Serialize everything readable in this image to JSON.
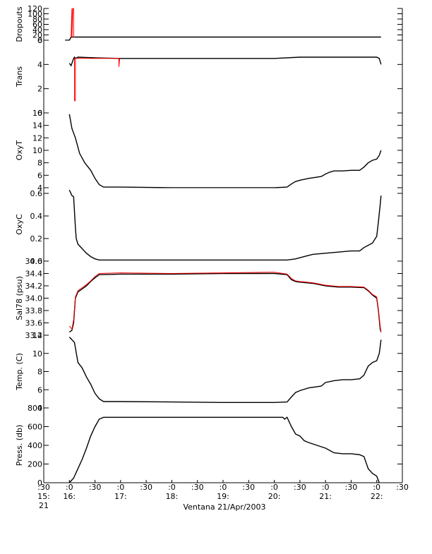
{
  "chart_data": [
    {
      "type": "line",
      "ylabel": "Dropouts",
      "ylim": [
        0,
        120
      ],
      "yticks": [
        0,
        20,
        40,
        60,
        80,
        100,
        120
      ],
      "ytick_labels": [
        "0",
        "20",
        "40",
        "60",
        "80",
        "100",
        "120"
      ],
      "series": [
        {
          "color": "#000000",
          "x": [
            "15:55",
            "16:00",
            "16:02",
            "16:03",
            "22:05"
          ],
          "y": [
            0,
            0,
            12,
            12,
            12
          ]
        },
        {
          "color": "#ff0000",
          "x": [
            "16:02",
            "16:03",
            "16:03",
            "16:04",
            "16:05",
            "16:05",
            "16:06"
          ],
          "y": [
            12,
            120,
            12,
            120,
            120,
            12,
            12
          ]
        }
      ]
    },
    {
      "type": "line",
      "ylabel": "Trans",
      "ylim": [
        0,
        6
      ],
      "yticks": [
        0,
        2,
        4,
        6
      ],
      "ytick_labels": [
        "0",
        "2",
        "4",
        "6"
      ],
      "series": [
        {
          "color": "#000000",
          "x": [
            "16:00",
            "16:02",
            "16:05",
            "16:06",
            "16:07",
            "16:10",
            "16:30",
            "17:00",
            "17:30",
            "18:00",
            "19:00",
            "20:00",
            "20:30",
            "21:00",
            "21:30",
            "22:00",
            "22:03",
            "22:05"
          ],
          "y": [
            4.1,
            3.9,
            4.5,
            4.6,
            4.5,
            4.6,
            4.55,
            4.5,
            4.5,
            4.5,
            4.5,
            4.5,
            4.6,
            4.6,
            4.6,
            4.6,
            4.5,
            4.0
          ]
        },
        {
          "color": "#ff0000",
          "x": [
            "16:06",
            "16:06",
            "16:07",
            "16:07",
            "16:58",
            "16:58",
            "16:59"
          ],
          "y": [
            4.5,
            1.0,
            1.0,
            4.5,
            4.5,
            3.8,
            4.5
          ]
        }
      ]
    },
    {
      "type": "line",
      "ylabel": "OxyT",
      "ylim": [
        4,
        16
      ],
      "yticks": [
        4,
        6,
        8,
        10,
        12,
        14,
        16
      ],
      "ytick_labels": [
        "4",
        "6",
        "8",
        "10",
        "12",
        "14",
        "16"
      ],
      "series": [
        {
          "color": "#000000",
          "x": [
            "16:00",
            "16:03",
            "16:07",
            "16:12",
            "16:18",
            "16:25",
            "16:30",
            "16:35",
            "16:40",
            "17:00",
            "18:00",
            "19:00",
            "19:30",
            "20:00",
            "20:15",
            "20:20",
            "20:25",
            "20:30",
            "20:40",
            "20:55",
            "21:00",
            "21:05",
            "21:10",
            "21:20",
            "21:30",
            "21:40",
            "21:45",
            "21:50",
            "21:55",
            "22:00",
            "22:03",
            "22:05"
          ],
          "y": [
            15.8,
            13.5,
            12.0,
            9.5,
            8.0,
            6.8,
            5.5,
            4.5,
            4.1,
            4.1,
            4.0,
            4.0,
            4.0,
            4.0,
            4.1,
            4.6,
            5.0,
            5.2,
            5.5,
            5.8,
            6.2,
            6.5,
            6.7,
            6.7,
            6.8,
            6.8,
            7.3,
            8.0,
            8.4,
            8.6,
            9.2,
            10.0
          ]
        }
      ]
    },
    {
      "type": "line",
      "ylabel": "OxyC",
      "ylim": [
        0,
        0.65
      ],
      "yticks": [
        0,
        0.2,
        0.4,
        0.6
      ],
      "ytick_labels": [
        "0.0",
        "0.2",
        "0.4",
        "0.6"
      ],
      "series": [
        {
          "color": "#000000",
          "x": [
            "16:00",
            "16:03",
            "16:05",
            "16:07",
            "16:08",
            "16:10",
            "16:15",
            "16:20",
            "16:25",
            "16:30",
            "16:35",
            "17:00",
            "18:00",
            "19:00",
            "20:00",
            "20:15",
            "20:25",
            "20:35",
            "20:45",
            "21:00",
            "21:15",
            "21:30",
            "21:40",
            "21:45",
            "21:50",
            "21:55",
            "22:00",
            "22:02",
            "22:04",
            "22:05"
          ],
          "y": [
            0.63,
            0.58,
            0.57,
            0.3,
            0.2,
            0.15,
            0.11,
            0.07,
            0.04,
            0.02,
            0.01,
            0.01,
            0.01,
            0.01,
            0.01,
            0.01,
            0.02,
            0.04,
            0.06,
            0.07,
            0.08,
            0.09,
            0.09,
            0.12,
            0.14,
            0.16,
            0.22,
            0.35,
            0.5,
            0.58
          ]
        }
      ]
    },
    {
      "type": "line",
      "ylabel": "Sal78 (psu)",
      "ylim": [
        33.4,
        34.6
      ],
      "yticks": [
        33.4,
        33.6,
        33.8,
        34.0,
        34.2,
        34.4,
        34.6
      ],
      "ytick_labels": [
        "33.4",
        "33.6",
        "33.8",
        "34.0",
        "34.2",
        "34.4",
        "34.6"
      ],
      "series": [
        {
          "color": "#000000",
          "x": [
            "16:00",
            "16:03",
            "16:05",
            "16:07",
            "16:10",
            "16:15",
            "16:20",
            "16:25",
            "16:30",
            "16:35",
            "17:00",
            "18:00",
            "19:00",
            "20:00",
            "20:15",
            "20:20",
            "20:25",
            "20:30",
            "20:45",
            "21:00",
            "21:15",
            "21:30",
            "21:45",
            "21:50",
            "21:55",
            "22:00",
            "22:02",
            "22:04",
            "22:05"
          ],
          "y": [
            33.45,
            33.48,
            33.6,
            34.0,
            34.1,
            34.15,
            34.2,
            34.27,
            34.33,
            34.38,
            34.39,
            34.39,
            34.4,
            34.4,
            34.38,
            34.3,
            34.27,
            34.26,
            34.24,
            34.2,
            34.18,
            34.18,
            34.17,
            34.12,
            34.05,
            34.0,
            33.8,
            33.5,
            33.45
          ]
        },
        {
          "color": "#ff0000",
          "x": [
            "16:00",
            "16:03",
            "16:05",
            "16:07",
            "16:10",
            "16:15",
            "16:20",
            "16:25",
            "16:30",
            "16:35",
            "17:00",
            "18:00",
            "19:00",
            "20:00",
            "20:15",
            "20:20",
            "20:25",
            "20:30",
            "20:45",
            "21:00",
            "21:15",
            "21:30",
            "21:45",
            "21:50",
            "21:55",
            "22:00",
            "22:02",
            "22:04",
            "22:05"
          ],
          "y": [
            33.55,
            33.5,
            33.65,
            34.02,
            34.12,
            34.17,
            34.22,
            34.28,
            34.35,
            34.4,
            34.41,
            34.4,
            34.41,
            34.42,
            34.39,
            34.32,
            34.28,
            34.27,
            34.25,
            34.21,
            34.19,
            34.19,
            34.18,
            34.13,
            34.06,
            34.02,
            33.82,
            33.55,
            33.45
          ]
        }
      ]
    },
    {
      "type": "line",
      "ylabel": "Temp. (C)",
      "ylim": [
        4,
        12
      ],
      "yticks": [
        4,
        6,
        8,
        10,
        12
      ],
      "ytick_labels": [
        "4",
        "6",
        "8",
        "10",
        "12"
      ],
      "series": [
        {
          "color": "#000000",
          "x": [
            "16:00",
            "16:03",
            "16:06",
            "16:10",
            "16:15",
            "16:20",
            "16:25",
            "16:30",
            "16:35",
            "16:40",
            "17:00",
            "18:00",
            "19:00",
            "20:00",
            "20:15",
            "20:20",
            "20:25",
            "20:30",
            "20:40",
            "20:55",
            "21:00",
            "21:10",
            "21:20",
            "21:30",
            "21:40",
            "21:45",
            "21:50",
            "21:55",
            "22:00",
            "22:03",
            "22:05"
          ],
          "y": [
            11.8,
            11.5,
            11.2,
            9.0,
            8.4,
            7.4,
            6.6,
            5.6,
            5.0,
            4.7,
            4.7,
            4.65,
            4.6,
            4.6,
            4.65,
            5.2,
            5.7,
            5.9,
            6.2,
            6.4,
            6.8,
            7.0,
            7.1,
            7.1,
            7.2,
            7.6,
            8.6,
            9.0,
            9.2,
            10.0,
            11.5
          ]
        }
      ]
    },
    {
      "type": "line",
      "ylabel": "Press. (db)",
      "ylim": [
        0,
        800
      ],
      "yticks": [
        0,
        200,
        400,
        600,
        800
      ],
      "ytick_labels": [
        "0",
        "200",
        "400",
        "600",
        "800"
      ],
      "series": [
        {
          "color": "#000000",
          "x": [
            "16:00",
            "16:05",
            "16:10",
            "16:15",
            "16:20",
            "16:25",
            "16:30",
            "16:35",
            "16:40",
            "17:00",
            "18:00",
            "19:00",
            "20:00",
            "20:10",
            "20:12",
            "20:15",
            "20:20",
            "20:25",
            "20:30",
            "20:35",
            "20:40",
            "20:50",
            "21:00",
            "21:10",
            "21:20",
            "21:30",
            "21:40",
            "21:45",
            "21:50",
            "21:55",
            "22:00",
            "22:03",
            "22:05"
          ],
          "y": [
            0,
            50,
            150,
            250,
            370,
            500,
            600,
            680,
            700,
            700,
            700,
            700,
            700,
            700,
            680,
            700,
            600,
            520,
            500,
            450,
            430,
            400,
            370,
            320,
            310,
            310,
            300,
            280,
            150,
            100,
            70,
            0,
            -20
          ]
        }
      ]
    }
  ],
  "x_axis": {
    "ticks": [
      "15:30",
      "16:00",
      "16:30",
      "17:00",
      "17:30",
      "18:00",
      "18:30",
      "19:00",
      "19:30",
      "20:00",
      "20:30",
      "21:00",
      "21:30",
      "22:00",
      "22:30"
    ],
    "tick_labels_top": [
      ":30",
      ":0",
      ":30",
      ":0",
      ":30",
      ":0",
      ":30",
      ":0",
      ":30",
      ":0",
      ":30",
      ":0",
      ":30",
      ":0",
      ":30"
    ],
    "tick_labels_hour": [
      "15:",
      "16:",
      "17:",
      "18:",
      "19:",
      "20:",
      "21:",
      "22:"
    ],
    "hour_ticks": [
      "15:30",
      "16:00",
      "17:00",
      "18:00",
      "19:00",
      "20:00",
      "21:00",
      "22:00"
    ],
    "day_label": "21",
    "title": "Ventana 21/Apr/2003",
    "range": [
      "15:30",
      "22:30"
    ]
  },
  "colors": {
    "trace": "#000000",
    "raw": "#ff0000",
    "axis": "#000000"
  }
}
